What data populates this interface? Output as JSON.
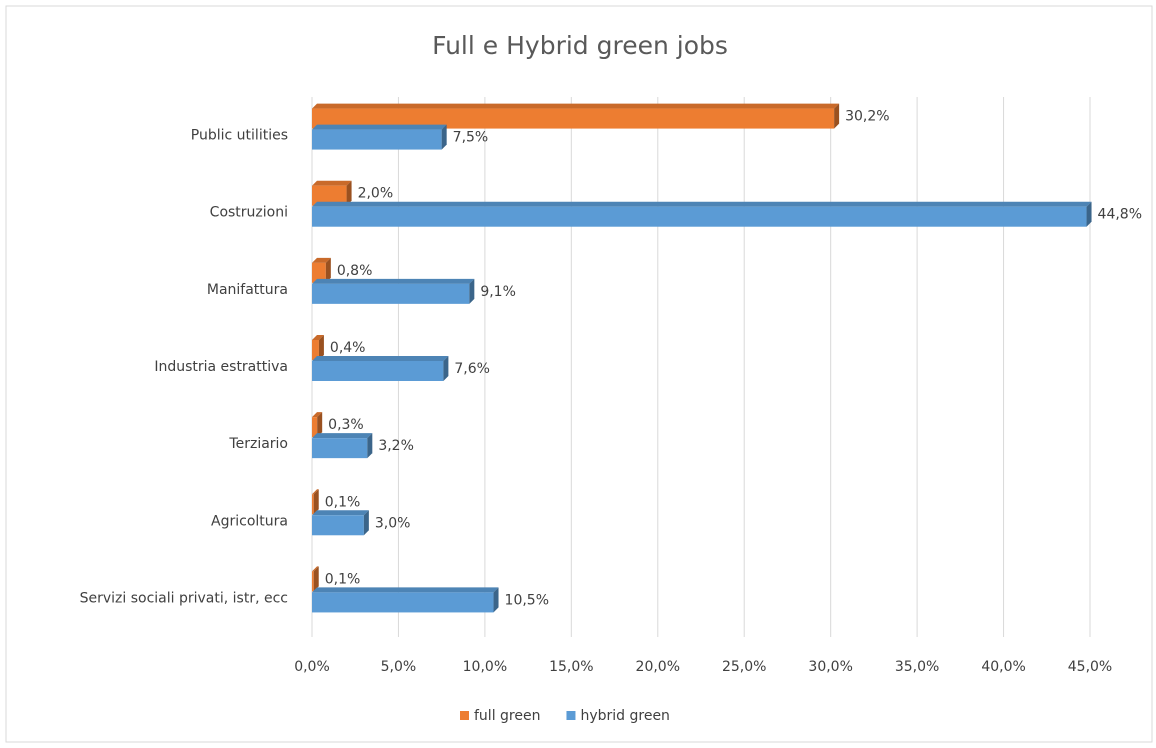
{
  "chart_data": {
    "type": "bar",
    "orientation": "horizontal",
    "title": "Full e Hybrid green jobs",
    "categories": [
      "Public utilities",
      "Costruzioni",
      "Manifattura",
      "Industria estrattiva",
      "Terziario",
      "Agricoltura",
      "Servizi sociali privati, istr, ecc"
    ],
    "series": [
      {
        "name": "full green",
        "color": "#ed7d31",
        "values": [
          30.2,
          2.0,
          0.8,
          0.4,
          0.3,
          0.1,
          0.1
        ],
        "value_labels": [
          "30,2%",
          "2,0%",
          "0,8%",
          "0,4%",
          "0,3%",
          "0,1%",
          "0,1%"
        ]
      },
      {
        "name": "hybrid green",
        "color": "#5b9bd5",
        "values": [
          7.5,
          44.8,
          9.1,
          7.6,
          3.2,
          3.0,
          10.5
        ],
        "value_labels": [
          "7,5%",
          "44,8%",
          "9,1%",
          "7,6%",
          "3,2%",
          "3,0%",
          "10,5%"
        ]
      }
    ],
    "xlim": [
      0,
      45
    ],
    "xticks": [
      {
        "value": 0,
        "label": "0,0%"
      },
      {
        "value": 5,
        "label": "5,0%"
      },
      {
        "value": 10,
        "label": "10,0%"
      },
      {
        "value": 15,
        "label": "15,0%"
      },
      {
        "value": 20,
        "label": "20,0%"
      },
      {
        "value": 25,
        "label": "25,0%"
      },
      {
        "value": 30,
        "label": "30,0%"
      },
      {
        "value": 35,
        "label": "35,0%"
      },
      {
        "value": 40,
        "label": "40,0%"
      },
      {
        "value": 45,
        "label": "45,0%"
      }
    ],
    "grid": true,
    "legend": "bottom"
  }
}
